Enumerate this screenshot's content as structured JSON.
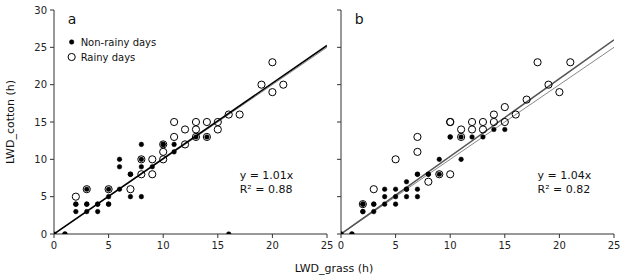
{
  "chart_data": [
    {
      "type": "scatter",
      "title": "a",
      "annotations": [
        "y = 1.01x",
        "R² = 0.88"
      ],
      "xlabel": "LWD_grass (h)",
      "ylabel": "LWD_cotton (h)",
      "legend": "upper left",
      "xlim": [
        0,
        25
      ],
      "ylim": [
        0,
        30
      ],
      "xticks": [
        0,
        5,
        10,
        15,
        20,
        25
      ],
      "yticks": [
        0,
        5,
        10,
        15,
        20,
        25,
        30
      ],
      "series": [
        {
          "name": "Non-rainy days",
          "color": "#000000",
          "marker": "circle",
          "x": [
            1,
            1,
            2,
            2,
            2,
            3,
            3,
            3,
            3,
            4,
            4,
            4,
            5,
            5,
            5,
            5,
            6,
            6,
            6,
            7,
            7,
            7,
            7,
            8,
            8,
            8,
            9,
            10,
            10,
            11,
            11,
            13,
            14,
            16,
            0,
            8
          ],
          "values": [
            0,
            0,
            4,
            3,
            4,
            4,
            3,
            4,
            6,
            3,
            4,
            4,
            4,
            4,
            5,
            6,
            6,
            9,
            10,
            5,
            8,
            8,
            8,
            5,
            9,
            10,
            9,
            12,
            12,
            12,
            11,
            13,
            13,
            0,
            0,
            12
          ]
        },
        {
          "name": "Rainy days",
          "color": "#000000",
          "marker": "open-circle",
          "x": [
            2,
            3,
            5,
            7,
            8,
            8,
            9,
            9,
            10,
            10,
            10,
            11,
            11,
            12,
            12,
            13,
            13,
            13,
            14,
            14,
            15,
            15,
            16,
            17,
            19,
            20,
            20,
            21
          ],
          "values": [
            5,
            6,
            6,
            6,
            8,
            10,
            8,
            10,
            10,
            11,
            12,
            13,
            15,
            12,
            14,
            13,
            14,
            15,
            13,
            15,
            14,
            15,
            16,
            16,
            20,
            19,
            23,
            20
          ]
        },
        {
          "type": "line",
          "color": "#888888",
          "line_style": "solid",
          "x": [
            0,
            25
          ],
          "values": [
            0,
            25
          ]
        },
        {
          "type": "line",
          "color": "#000000",
          "line_style": "solid",
          "x": [
            0,
            25
          ],
          "values": [
            0,
            25.25
          ]
        }
      ]
    },
    {
      "type": "scatter",
      "title": "b",
      "annotations": [
        "y = 1.04x",
        "R² = 0.82"
      ],
      "tick_labels": "x",
      "xlim": [
        0,
        25
      ],
      "ylim": [
        0,
        30
      ],
      "xticks": [
        0,
        5,
        10,
        15,
        20,
        25
      ],
      "yticks": [
        0,
        5,
        10,
        15,
        20,
        25,
        30
      ],
      "series": [
        {
          "name": "Non-rainy days",
          "color": "#000000",
          "marker": "circle",
          "x": [
            1,
            1,
            2,
            2,
            2,
            2,
            3,
            3,
            3,
            4,
            4,
            4,
            5,
            5,
            5,
            6,
            6,
            6,
            6,
            7,
            7,
            7,
            7,
            8,
            8,
            9,
            9,
            10,
            10,
            11,
            11,
            12,
            13,
            14,
            15,
            0,
            0
          ],
          "values": [
            0,
            0,
            3,
            3,
            4,
            4,
            3,
            4,
            4,
            4,
            5,
            6,
            4,
            5,
            6,
            5,
            6,
            6,
            7,
            5,
            6,
            8,
            8,
            8,
            8,
            8,
            10,
            13,
            13,
            13,
            10,
            13,
            13,
            14,
            14,
            0,
            0
          ]
        },
        {
          "name": "Rainy days",
          "color": "#000000",
          "marker": "open-circle",
          "x": [
            2,
            3,
            5,
            7,
            7,
            8,
            9,
            10,
            10,
            10,
            11,
            11,
            12,
            12,
            13,
            13,
            14,
            14,
            15,
            15,
            16,
            17,
            18,
            19,
            20,
            21
          ],
          "values": [
            4,
            6,
            10,
            11,
            13,
            7,
            8,
            8,
            15,
            15,
            13,
            14,
            14,
            15,
            14,
            15,
            15,
            16,
            15,
            17,
            16,
            18,
            23,
            20,
            19,
            23
          ]
        },
        {
          "type": "line",
          "color": "#888888",
          "line_style": "solid",
          "x": [
            0,
            25
          ],
          "values": [
            0,
            25
          ]
        },
        {
          "type": "line",
          "color": "#555555",
          "line_style": "solid",
          "x": [
            0,
            25
          ],
          "values": [
            0,
            26
          ]
        }
      ]
    }
  ]
}
